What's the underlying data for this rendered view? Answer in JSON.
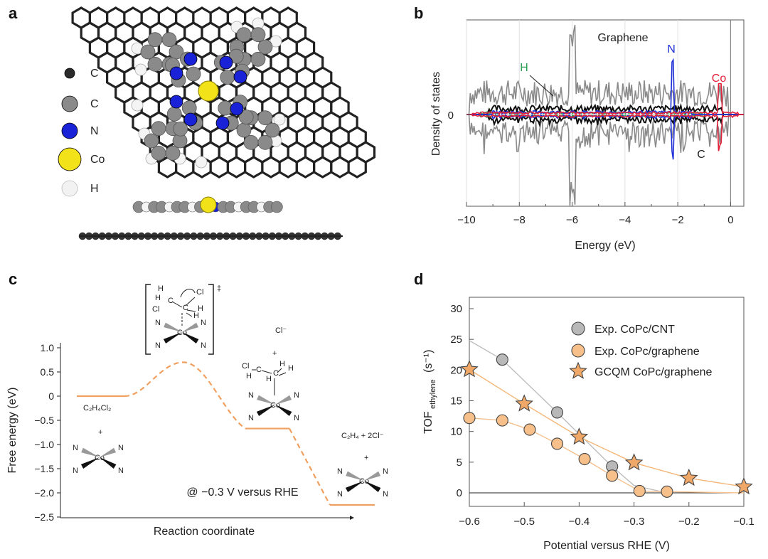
{
  "panels": {
    "a": {
      "letter": "a",
      "legend": [
        {
          "label": "C",
          "color": "#2a2a2a",
          "size": "small"
        },
        {
          "label": "C",
          "color": "#8a8a8a",
          "size": "medium"
        },
        {
          "label": "N",
          "color": "#1a22d8",
          "size": "medium"
        },
        {
          "label": "Co",
          "color": "#f2e21a",
          "size": "large"
        },
        {
          "label": "H",
          "color": "#f2f2f2",
          "size": "medium"
        }
      ]
    },
    "b": {
      "letter": "b"
    },
    "c": {
      "letter": "c",
      "xlabel": "Reaction coordinate",
      "ylabel": "Free energy (eV)",
      "yticks": [
        "1.0",
        "0.5",
        "0",
        "-0.5",
        "-1.0",
        "-1.5",
        "-2.0",
        "-2.5"
      ],
      "annotation": "@ −0.3 V versus RHE",
      "species": {
        "initial": "C₂H₄Cl₂",
        "intermediate_ion": "Cl⁻",
        "final": "C₂H₄ + 2Cl⁻",
        "plus": "+",
        "ts_mark": "‡"
      }
    },
    "d": {
      "letter": "d"
    }
  },
  "chart_data": [
    {
      "type": "line",
      "panel": "b",
      "xlabel": "Energy (eV)",
      "ylabel": "Density of states",
      "xlim": [
        -10,
        0.5
      ],
      "xticks": [
        "−10",
        "−8",
        "−6",
        "−4",
        "−2",
        "0"
      ],
      "ytick_label": "0",
      "grid": true,
      "series": [
        {
          "name": "Graphene",
          "color": "#8a8a8a"
        },
        {
          "name": "C",
          "color": "#111111"
        },
        {
          "name": "N",
          "color": "#1f2fd6"
        },
        {
          "name": "Co",
          "color": "#e3203a"
        },
        {
          "name": "H",
          "color": "#2ea055"
        }
      ],
      "fermi_level": 0,
      "peaks": {
        "N": -2.2,
        "Co": -0.4,
        "Graphene": -6.0
      }
    },
    {
      "type": "line",
      "panel": "c",
      "xlabel": "Reaction coordinate",
      "ylabel": "Free energy (eV)",
      "ylim": [
        -2.5,
        1.0
      ],
      "color": "#f0a060",
      "states": [
        {
          "stage": "initial",
          "energy": 0.0
        },
        {
          "stage": "transition",
          "energy": 0.7
        },
        {
          "stage": "intermediate",
          "energy": -0.67
        },
        {
          "stage": "final",
          "energy": -2.25
        }
      ]
    },
    {
      "type": "scatter",
      "panel": "d",
      "xlabel": "Potential versus RHE (V)",
      "ylabel": "TOF",
      "ylabel_sub": "ethylene",
      "ylabel_unit": "(s⁻¹)",
      "xlim": [
        -0.6,
        -0.1
      ],
      "ylim": [
        0,
        30
      ],
      "xticks": [
        "−0.6",
        "−0.5",
        "−0.4",
        "−0.3",
        "−0.2",
        "−0.1"
      ],
      "yticks": [
        "0",
        "5",
        "10",
        "15",
        "20",
        "25",
        "30"
      ],
      "legend_position": "top-right",
      "series": [
        {
          "name": "Exp. CoPc/CNT",
          "marker": "circle",
          "color": "#b8b8b8",
          "x": [
            -0.54,
            -0.44,
            -0.34
          ],
          "y": [
            21.7,
            13.1,
            4.3
          ]
        },
        {
          "name": "Exp. CoPc/graphene",
          "marker": "circle",
          "color": "#f7c08a",
          "x": [
            -0.6,
            -0.54,
            -0.49,
            -0.44,
            -0.39,
            -0.34,
            -0.29,
            -0.24
          ],
          "y": [
            12.2,
            11.8,
            10.3,
            8.0,
            5.5,
            2.8,
            0.3,
            0.2
          ]
        },
        {
          "name": "GCQM CoPc/graphene",
          "marker": "star",
          "color": "#f0a868",
          "x": [
            -0.6,
            -0.5,
            -0.4,
            -0.3,
            -0.2,
            -0.1
          ],
          "y": [
            20.1,
            14.5,
            9.1,
            4.9,
            2.4,
            1.0
          ]
        }
      ]
    }
  ]
}
